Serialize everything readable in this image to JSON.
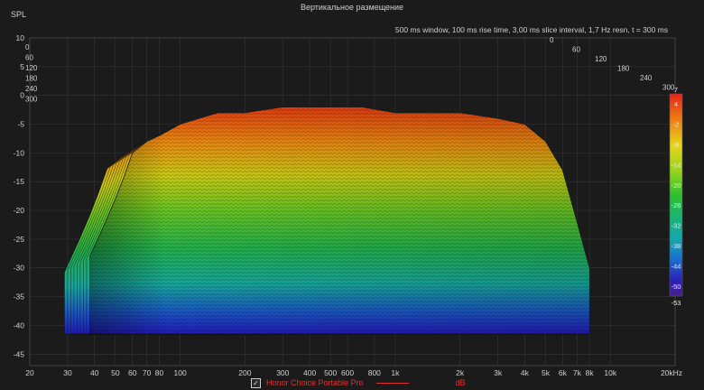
{
  "title": "Вертикальное размещение",
  "info": "500 ms window, 100 ms rise time, 3,00 ms slice interval, 1,7 Hz resn, t = 300 ms",
  "legend": {
    "checked": "✓",
    "name": "Honor Choice Portable Pro",
    "unit": "dB"
  },
  "colors": {
    "background": "#1b1b1b",
    "grid": "#3a3a3a",
    "series": "#e03030"
  },
  "chart_data": {
    "type": "waterfall",
    "title": "Вертикальное размещение",
    "xlabel": "",
    "ylabel": "SPL",
    "x_scale": "log",
    "xlim": [
      20,
      20000
    ],
    "ylim": [
      -47,
      10
    ],
    "x_ticks": [
      {
        "value": 20,
        "label": "20"
      },
      {
        "value": 30,
        "label": "30"
      },
      {
        "value": 40,
        "label": "40"
      },
      {
        "value": 50,
        "label": "50"
      },
      {
        "value": 60,
        "label": "60"
      },
      {
        "value": 70,
        "label": "70"
      },
      {
        "value": 80,
        "label": "80"
      },
      {
        "value": 100,
        "label": "100"
      },
      {
        "value": 200,
        "label": "200"
      },
      {
        "value": 300,
        "label": "300"
      },
      {
        "value": 400,
        "label": "400"
      },
      {
        "value": 500,
        "label": "500"
      },
      {
        "value": 600,
        "label": "600"
      },
      {
        "value": 800,
        "label": "800"
      },
      {
        "value": 1000,
        "label": "1k"
      },
      {
        "value": 2000,
        "label": "2k"
      },
      {
        "value": 3000,
        "label": "3k"
      },
      {
        "value": 4000,
        "label": "4k"
      },
      {
        "value": 5000,
        "label": "5k"
      },
      {
        "value": 6000,
        "label": "6k"
      },
      {
        "value": 7000,
        "label": "7k"
      },
      {
        "value": 8000,
        "label": "8k"
      },
      {
        "value": 10000,
        "label": "10k"
      },
      {
        "value": 20000,
        "label": "20kHz"
      }
    ],
    "y_ticks": [
      {
        "value": 10,
        "label": "10"
      },
      {
        "value": 5,
        "label": "5"
      },
      {
        "value": 0,
        "label": "0"
      },
      {
        "value": -5,
        "label": "-5"
      },
      {
        "value": -10,
        "label": "-10"
      },
      {
        "value": -15,
        "label": "-15"
      },
      {
        "value": -20,
        "label": "-20"
      },
      {
        "value": -25,
        "label": "-25"
      },
      {
        "value": -30,
        "label": "-30"
      },
      {
        "value": -35,
        "label": "-35"
      },
      {
        "value": -40,
        "label": "-40"
      },
      {
        "value": -45,
        "label": "-45"
      }
    ],
    "time_axis_ms": [
      0,
      60,
      120,
      180,
      240,
      300
    ],
    "colorbar": {
      "unit": "dB",
      "range": [
        -53,
        7
      ],
      "ticks": [
        7,
        4,
        -2,
        -8,
        -14,
        -20,
        -26,
        -32,
        -38,
        -44,
        -50,
        -53
      ]
    },
    "series": [
      {
        "name": "Honor Choice Portable Pro",
        "time_ms": 0,
        "frequency_hz": [
          38,
          45,
          50,
          55,
          60,
          70,
          80,
          100,
          150,
          200,
          300,
          400,
          500,
          700,
          1000,
          1500,
          2000,
          3000,
          4000,
          5000,
          6000,
          7000,
          8000
        ],
        "spl_db": [
          -28,
          -22,
          -18,
          -14,
          -10,
          -8,
          -7,
          -5,
          -3,
          -3,
          -2,
          -2,
          -2,
          -2,
          -3,
          -3,
          -3,
          -4,
          -5,
          -8,
          -13,
          -22,
          -30
        ]
      }
    ]
  }
}
